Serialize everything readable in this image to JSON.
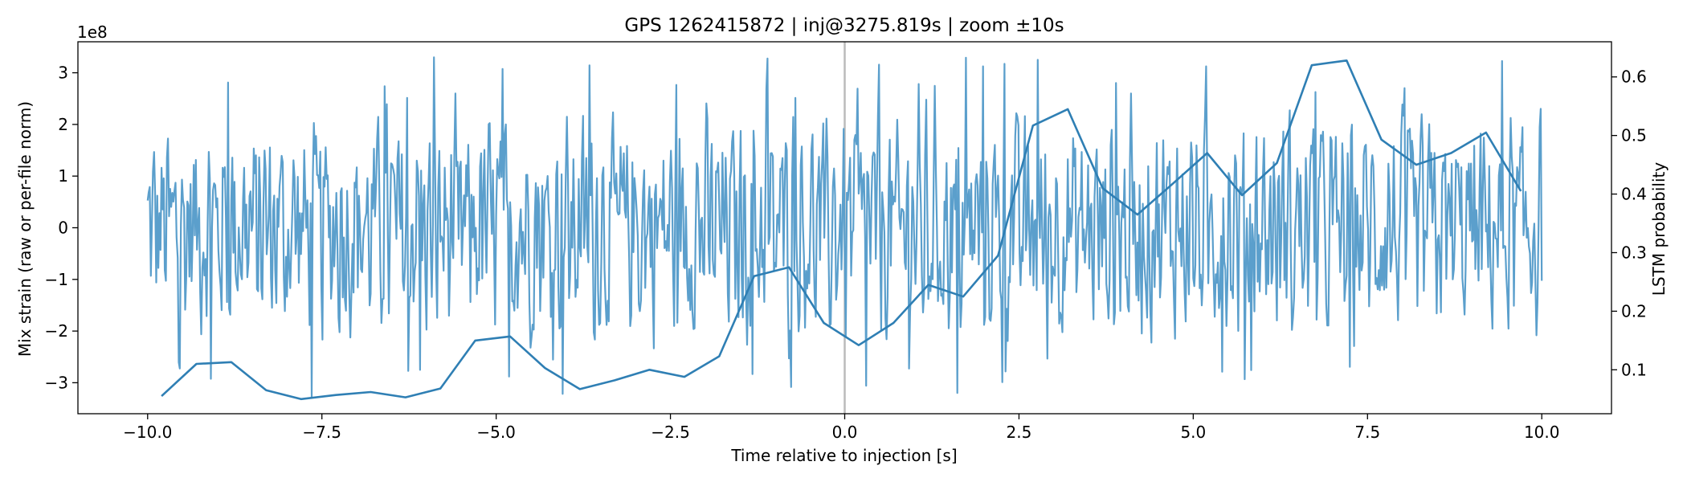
{
  "chart_data": {
    "type": "line",
    "title": "GPS 1262415872 | inj@3275.819s | zoom ±10s",
    "xlabel": "Time relative to injection [s]",
    "ylabel_left": "Mix strain (raw or per-file norm)",
    "ylabel_right": "LSTM probability",
    "left_axis_offset_label": "1e8",
    "xlim": [
      -11.0,
      11.0
    ],
    "ylim_left": [
      -3.6,
      3.6
    ],
    "ylim_right": [
      0.025,
      0.66
    ],
    "x_ticks": [
      -10.0,
      -7.5,
      -5.0,
      -2.5,
      0.0,
      2.5,
      5.0,
      7.5,
      10.0
    ],
    "x_tick_labels": [
      "−10.0",
      "−7.5",
      "−5.0",
      "−2.5",
      "0.0",
      "2.5",
      "5.0",
      "7.5",
      "10.0"
    ],
    "y_left_ticks": [
      -3,
      -2,
      -1,
      0,
      1,
      2,
      3
    ],
    "y_left_tick_labels": [
      "−3",
      "−2",
      "−1",
      "0",
      "1",
      "2",
      "3"
    ],
    "y_right_ticks": [
      0.1,
      0.2,
      0.3,
      0.4,
      0.5,
      0.6
    ],
    "y_right_tick_labels": [
      "0.1",
      "0.2",
      "0.3",
      "0.4",
      "0.5",
      "0.6"
    ],
    "grid": false,
    "injection_marker_x": 0.0,
    "colors": {
      "strain": "#5b9fcc",
      "probability": "#2f7fb4",
      "marker": "#bbbbbb"
    },
    "series": [
      {
        "axis": "left",
        "style": "dense oscillatory noise trace",
        "x_start": -10.0,
        "x_end": 10.0,
        "envelope": [
          -3.3,
          3.3
        ]
      },
      {
        "axis": "right",
        "x": [
          -9.8,
          -9.3,
          -8.8,
          -8.3,
          -7.8,
          -7.3,
          -6.8,
          -6.3,
          -5.8,
          -5.3,
          -4.8,
          -4.3,
          -3.8,
          -3.3,
          -2.8,
          -2.3,
          -1.8,
          -1.3,
          -0.8,
          -0.3,
          0.2,
          0.7,
          1.2,
          1.7,
          2.2,
          2.7,
          3.2,
          3.7,
          4.2,
          4.7,
          5.2,
          5.7,
          6.2,
          6.7,
          7.2,
          7.7,
          8.2,
          8.7,
          9.2,
          9.7
        ],
        "values": [
          0.055,
          0.11,
          0.113,
          0.065,
          0.05,
          0.057,
          0.062,
          0.053,
          0.068,
          0.15,
          0.157,
          0.103,
          0.067,
          0.082,
          0.1,
          0.088,
          0.123,
          0.26,
          0.275,
          0.18,
          0.142,
          0.18,
          0.245,
          0.225,
          0.295,
          0.517,
          0.545,
          0.41,
          0.365,
          0.417,
          0.47,
          0.398,
          0.453,
          0.62,
          0.628,
          0.493,
          0.45,
          0.47,
          0.505,
          0.405
        ]
      }
    ]
  }
}
